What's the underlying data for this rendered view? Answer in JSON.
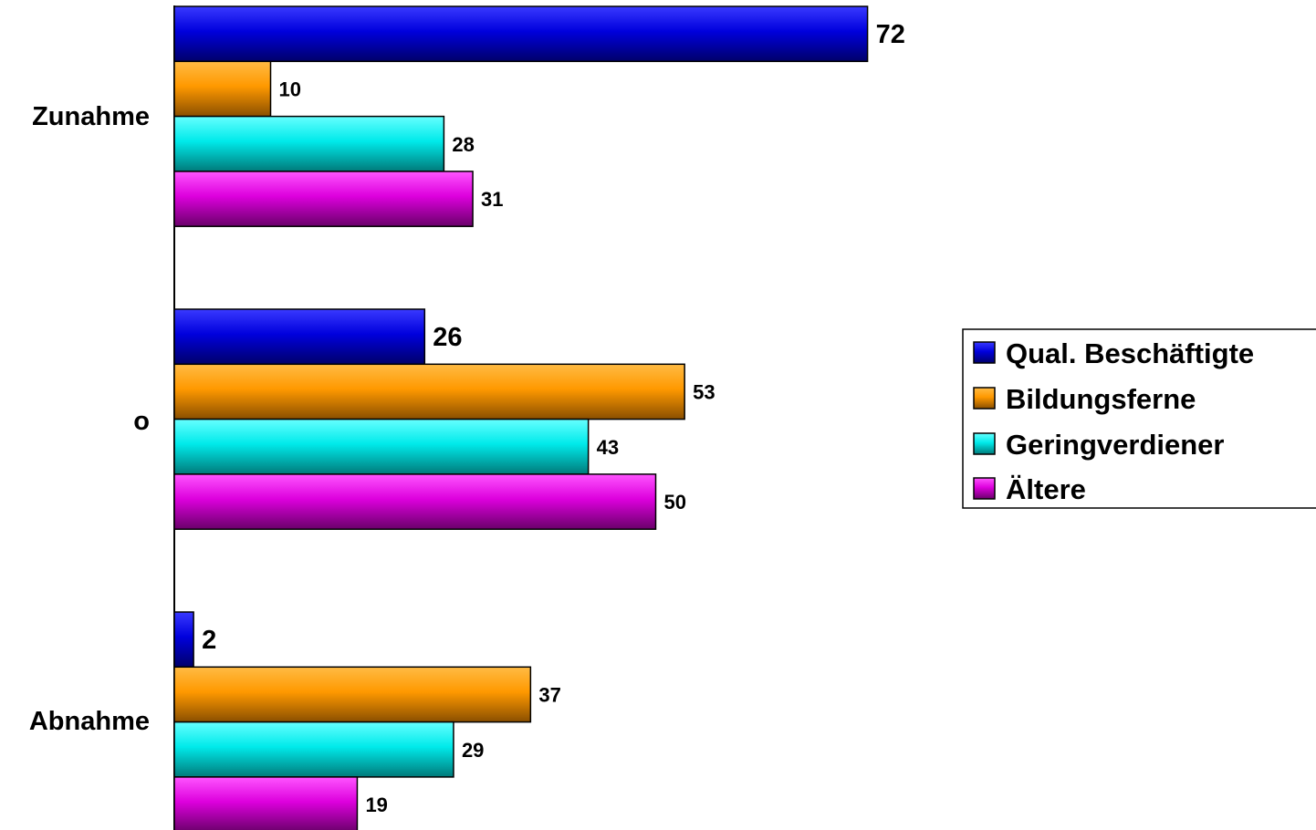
{
  "chart_data": {
    "type": "bar",
    "orientation": "horizontal",
    "categories": [
      "Zunahme",
      "o",
      "Abnahme"
    ],
    "series": [
      {
        "name": "Qual. Beschäftigte",
        "color": "#0000cc",
        "values": [
          72,
          26,
          2
        ]
      },
      {
        "name": "Bildungsferne",
        "color": "#ff9900",
        "values": [
          10,
          53,
          37
        ]
      },
      {
        "name": "Geringverdiener",
        "color": "#00e0e0",
        "values": [
          28,
          43,
          29
        ]
      },
      {
        "name": "Ältere",
        "color": "#dd00dd",
        "values": [
          31,
          50,
          19
        ]
      }
    ],
    "data_labels": true,
    "xlim": [
      0,
      100
    ],
    "grid": false,
    "legend": "right"
  }
}
